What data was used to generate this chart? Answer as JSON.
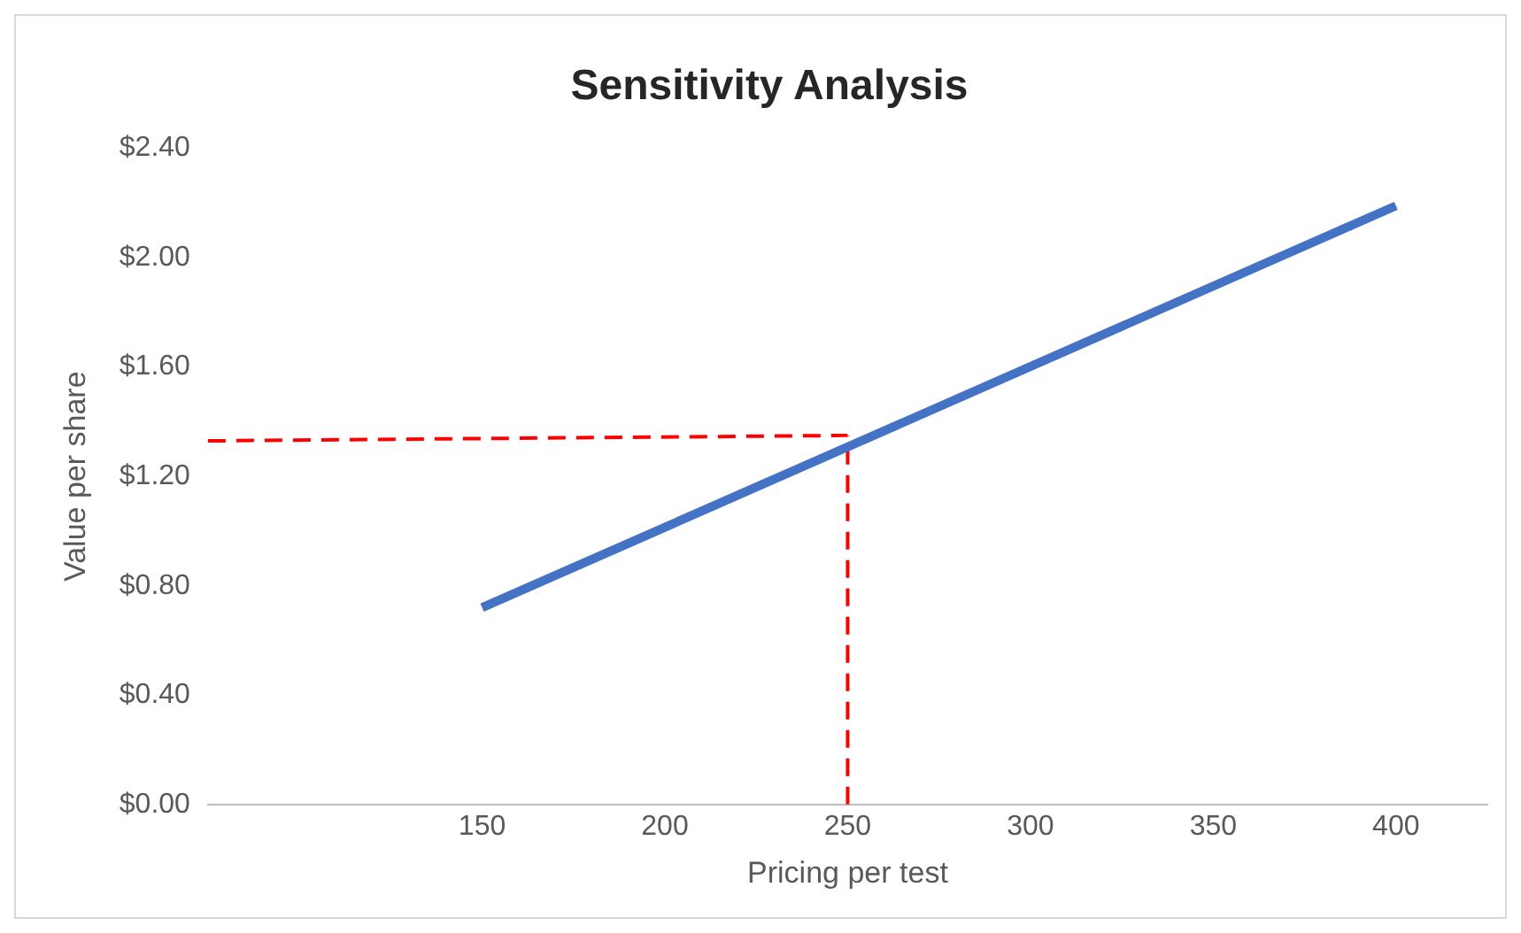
{
  "chart_data": {
    "type": "line",
    "title": "Sensitivity Analysis",
    "xlabel": "Pricing per test",
    "ylabel": "Value per share",
    "xlim": [
      75,
      425
    ],
    "xticks": [
      150,
      200,
      250,
      300,
      350,
      400
    ],
    "ylim": [
      0,
      2.4
    ],
    "yticks": [
      {
        "value": 0,
        "label": "$0.00"
      },
      {
        "value": 0.4,
        "label": "$0.40"
      },
      {
        "value": 0.8,
        "label": "$0.80"
      },
      {
        "value": 1.2,
        "label": "$1.20"
      },
      {
        "value": 1.6,
        "label": "$1.60"
      },
      {
        "value": 2.0,
        "label": "$2.00"
      },
      {
        "value": 2.4,
        "label": "$2.40"
      }
    ],
    "series": [
      {
        "color": "#4472c4",
        "x": [
          150,
          400
        ],
        "values": [
          0.72,
          2.19
        ]
      },
      {
        "color": "#ff0000",
        "x": [
          75,
          250
        ],
        "values": [
          1.33,
          1.35
        ],
        "line_style": "dashed"
      },
      {
        "color": "#ff0000",
        "x": [
          250,
          250
        ],
        "values": [
          0,
          1.35
        ],
        "line_style": "dashed"
      }
    ],
    "grid": false,
    "legend": false,
    "marker": "none"
  }
}
